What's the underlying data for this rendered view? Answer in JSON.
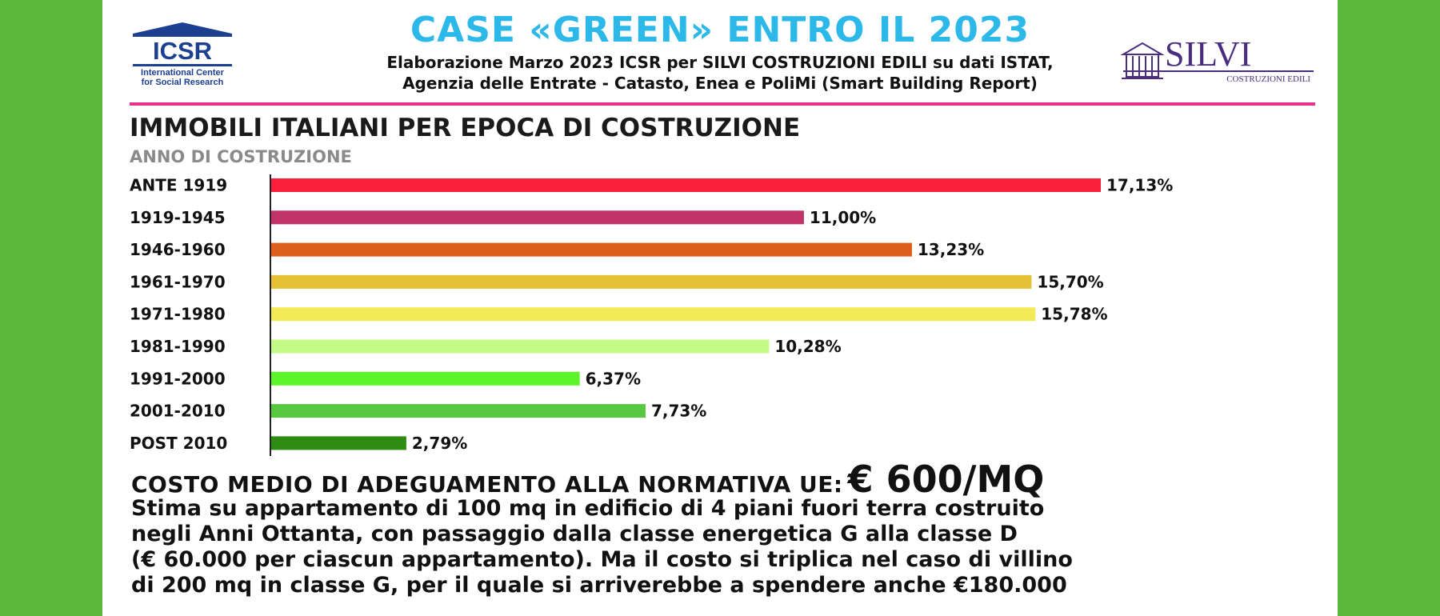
{
  "header": {
    "title": "CASE «GREEN» ENTRO IL 2023",
    "subtitle_line1": "Elaborazione Marzo 2023 ICSR per SILVI COSTRUZIONI EDILI su dati ISTAT,",
    "subtitle_line2": "Agenzia delle Entrate - Catasto, Enea e PoliMi (Smart Building Report)"
  },
  "logos": {
    "left": {
      "name": "ICSR",
      "tagline_line1": "International Center",
      "tagline_line2": "for Social Research"
    },
    "right": {
      "name": "SILVI",
      "tagline": "COSTRUZIONI EDILI"
    }
  },
  "colors": {
    "background": "#5cb83a",
    "title": "#2cb8e8",
    "rule": "#e8318a",
    "icsr_blue": "#1c3f8f",
    "silvi_purple": "#4b2d7f"
  },
  "chart_data": {
    "type": "bar",
    "orientation": "horizontal",
    "title": "IMMOBILI ITALIANI PER EPOCA DI COSTRUZIONE",
    "ylabel": "ANNO DI COSTRUZIONE",
    "xlim": [
      0,
      17.13
    ],
    "grid": false,
    "categories": [
      "ANTE 1919",
      "1919-1945",
      "1946-1960",
      "1961-1970",
      "1971-1980",
      "1981-1990",
      "1991-2000",
      "2001-2010",
      "POST 2010"
    ],
    "values": [
      17.13,
      11.0,
      13.23,
      15.7,
      15.78,
      10.28,
      6.37,
      7.73,
      2.79
    ],
    "value_labels": [
      "17,13%",
      "11,00%",
      "13,23%",
      "15,70%",
      "15,78%",
      "10,28%",
      "6,37%",
      "7,73%",
      "2,79%"
    ],
    "bar_colors": [
      "#f81e3c",
      "#c2336b",
      "#dd5f1b",
      "#e6c133",
      "#f2ea56",
      "#c4fb88",
      "#5cf529",
      "#57c83f",
      "#2f8c12"
    ]
  },
  "cost": {
    "label": "COSTO MEDIO DI ADEGUAMENTO ALLA NORMATIVA UE:",
    "value": "€ 600/MQ"
  },
  "description": {
    "line1": "Stima su appartamento di 100 mq in edificio di 4 piani fuori terra costruito",
    "line2": "negli Anni Ottanta, con passaggio dalla classe energetica G alla classe D",
    "line3": "(€ 60.000 per ciascun appartamento). Ma il costo si triplica nel caso di villino",
    "line4": "di 200 mq in classe G, per il quale si arriverebbe a spendere anche €180.000"
  }
}
